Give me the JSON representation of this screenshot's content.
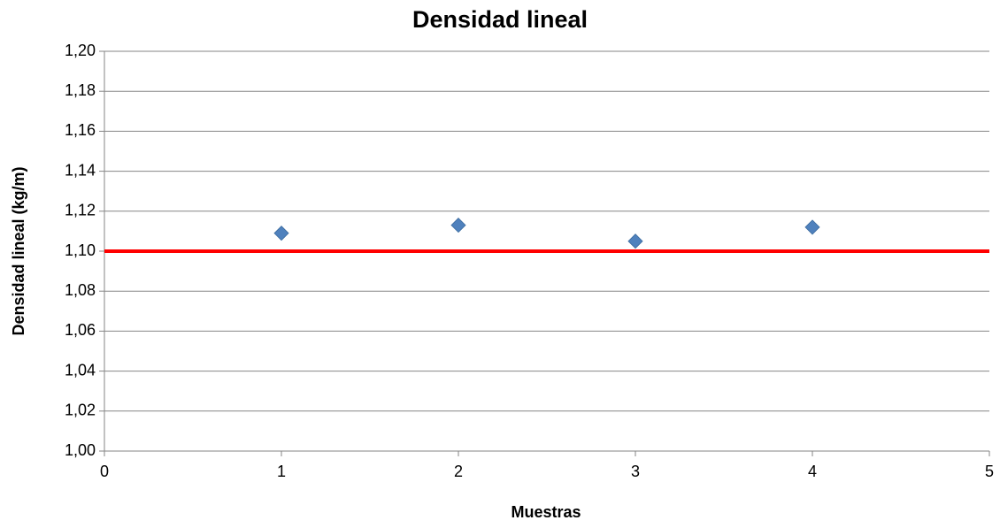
{
  "chart_data": {
    "type": "scatter",
    "title": "Densidad lineal",
    "x_label": "Muestras",
    "y_label": "Densidad lineal (kg/m)",
    "series": [
      {
        "color": "#4f81bd",
        "x": [
          1,
          2,
          3,
          4
        ],
        "values": [
          1.109,
          1.113,
          1.105,
          1.112
        ]
      }
    ],
    "reference_line": {
      "value": 1.1,
      "color": "#ff0000"
    },
    "xlim": [
      0,
      5
    ],
    "xticks": [
      0,
      1,
      2,
      3,
      4,
      5
    ],
    "ylim": [
      1.0,
      1.2
    ],
    "yticks": [
      {
        "value": 1.0,
        "label": "1,00"
      },
      {
        "value": 1.02,
        "label": "1,02"
      },
      {
        "value": 1.04,
        "label": "1,04"
      },
      {
        "value": 1.06,
        "label": "1,06"
      },
      {
        "value": 1.08,
        "label": "1,08"
      },
      {
        "value": 1.1,
        "label": "1,10"
      },
      {
        "value": 1.12,
        "label": "1,12"
      },
      {
        "value": 1.14,
        "label": "1,14"
      },
      {
        "value": 1.16,
        "label": "1,16"
      },
      {
        "value": 1.18,
        "label": "1,18"
      },
      {
        "value": 1.2,
        "label": "1,20"
      }
    ],
    "grid": true
  }
}
